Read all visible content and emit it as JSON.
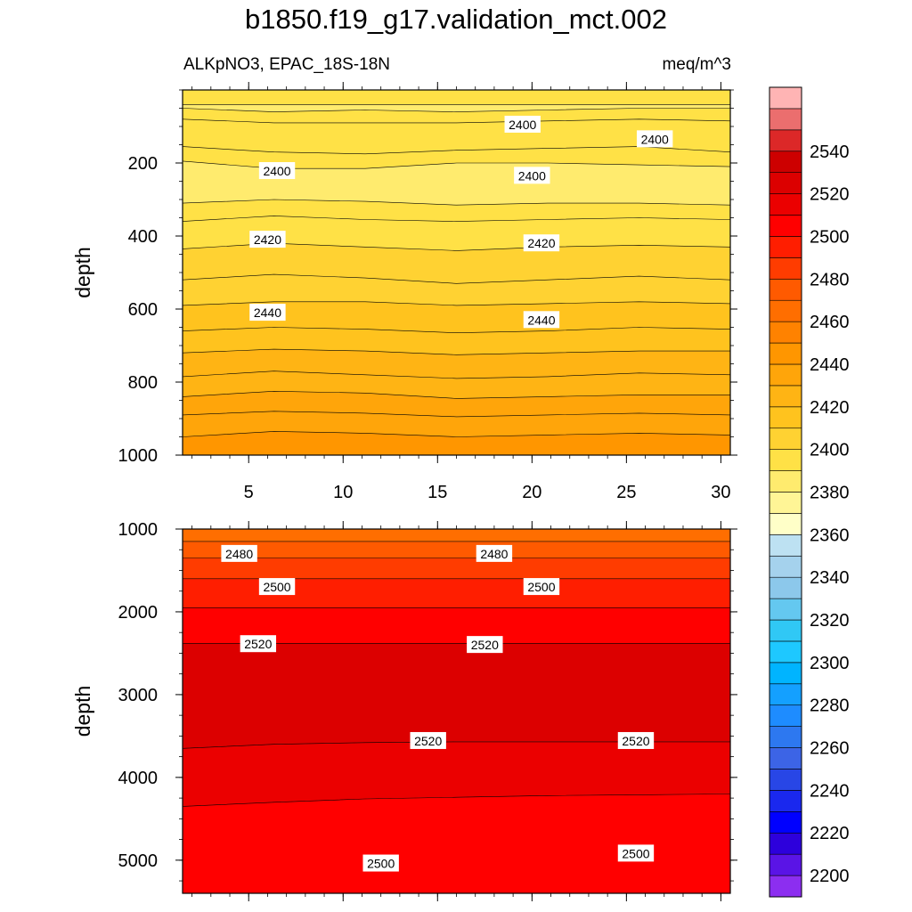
{
  "chart_data": {
    "type": "heatmap",
    "title": "b1850.f19_g17.validation_mct.002",
    "subtitle_left": "ALKpNO3, EPAC_18S-18N",
    "subtitle_right": "meq/m^3",
    "panels": [
      {
        "name": "upper",
        "ylabel": "depth",
        "xlim": [
          1.5,
          30.5
        ],
        "ylim": [
          1000,
          0
        ],
        "x_ticks": [
          "5",
          "10",
          "15",
          "20",
          "25",
          "30"
        ],
        "y_ticks": [
          "200",
          "400",
          "600",
          "800",
          "1000"
        ],
        "bands": [
          {
            "top": [
              0,
              0,
              0,
              0,
              0,
              0,
              0
            ],
            "bottom": [
              40,
              40,
              40,
              40,
              40,
              40,
              40
            ],
            "value": 2390
          },
          {
            "top": [
              40,
              40,
              40,
              40,
              40,
              40,
              40
            ],
            "bottom": [
              50,
              60,
              55,
              60,
              55,
              50,
              50
            ],
            "value": 2385
          },
          {
            "top": [
              50,
              60,
              55,
              60,
              55,
              50,
              50
            ],
            "bottom": [
              80,
              90,
              90,
              90,
              85,
              80,
              85
            ],
            "value": 2390
          },
          {
            "top": [
              80,
              90,
              90,
              90,
              85,
              80,
              85
            ],
            "bottom": [
              155,
              170,
              175,
              165,
              160,
              155,
              170
            ],
            "value": 2395
          },
          {
            "top": [
              155,
              170,
              175,
              165,
              160,
              155,
              170
            ],
            "bottom": [
              195,
              215,
              215,
              200,
              200,
              205,
              210
            ],
            "value": 2390
          },
          {
            "top": [
              195,
              215,
              215,
              200,
              200,
              205,
              210
            ],
            "bottom": [
              310,
              300,
              305,
              315,
              310,
              310,
              315
            ],
            "value": 2385
          },
          {
            "top": [
              310,
              300,
              305,
              315,
              310,
              310,
              315
            ],
            "bottom": [
              360,
              345,
              355,
              360,
              355,
              350,
              355
            ],
            "value": 2390
          },
          {
            "top": [
              360,
              345,
              355,
              360,
              355,
              350,
              355
            ],
            "bottom": [
              435,
              420,
              430,
              440,
              430,
              425,
              430
            ],
            "value": 2395
          },
          {
            "top": [
              435,
              420,
              430,
              440,
              430,
              425,
              430
            ],
            "bottom": [
              520,
              505,
              515,
              530,
              520,
              510,
              520
            ],
            "value": 2400
          },
          {
            "top": [
              520,
              505,
              515,
              530,
              520,
              510,
              520
            ],
            "bottom": [
              590,
              580,
              580,
              590,
              585,
              580,
              585
            ],
            "value": 2405
          },
          {
            "top": [
              590,
              580,
              580,
              590,
              585,
              580,
              585
            ],
            "bottom": [
              660,
              650,
              655,
              665,
              660,
              650,
              655
            ],
            "value": 2410
          },
          {
            "top": [
              660,
              650,
              655,
              665,
              660,
              650,
              655
            ],
            "bottom": [
              720,
              710,
              715,
              725,
              720,
              715,
              715
            ],
            "value": 2415
          },
          {
            "top": [
              720,
              710,
              715,
              725,
              720,
              715,
              715
            ],
            "bottom": [
              785,
              770,
              780,
              790,
              785,
              775,
              780
            ],
            "value": 2420
          },
          {
            "top": [
              785,
              770,
              780,
              790,
              785,
              775,
              780
            ],
            "bottom": [
              840,
              825,
              830,
              845,
              840,
              835,
              835
            ],
            "value": 2425
          },
          {
            "top": [
              840,
              825,
              830,
              845,
              840,
              835,
              835
            ],
            "bottom": [
              890,
              880,
              885,
              895,
              890,
              885,
              890
            ],
            "value": 2430
          },
          {
            "top": [
              890,
              880,
              885,
              895,
              890,
              885,
              890
            ],
            "bottom": [
              950,
              935,
              940,
              950,
              945,
              940,
              945
            ],
            "value": 2435
          },
          {
            "top": [
              950,
              935,
              940,
              950,
              945,
              940,
              945
            ],
            "bottom": [
              1000,
              1000,
              1000,
              1000,
              1000,
              1000,
              1000
            ],
            "value": 2445
          }
        ],
        "contour_labels": [
          {
            "x": 19.5,
            "y": 95,
            "text": "2400"
          },
          {
            "x": 26.5,
            "y": 135,
            "text": "2400"
          },
          {
            "x": 6.5,
            "y": 222,
            "text": "2400"
          },
          {
            "x": 20.0,
            "y": 235,
            "text": "2400"
          },
          {
            "x": 6.0,
            "y": 410,
            "text": "2420"
          },
          {
            "x": 20.5,
            "y": 420,
            "text": "2420"
          },
          {
            "x": 6.0,
            "y": 610,
            "text": "2440"
          },
          {
            "x": 20.5,
            "y": 630,
            "text": "2440"
          }
        ]
      },
      {
        "name": "lower",
        "ylabel": "depth",
        "xlim": [
          1.5,
          30.5
        ],
        "ylim": [
          1000,
          5400
        ],
        "x_ticks": [],
        "y_ticks": [
          "1000",
          "2000",
          "3000",
          "4000",
          "5000"
        ],
        "bands": [
          {
            "top": [
              1000,
              1000,
              1000,
              1000,
              1000,
              1000,
              1000
            ],
            "bottom": [
              1150,
              1150,
              1150,
              1150,
              1150,
              1150,
              1150
            ],
            "value": 2465
          },
          {
            "top": [
              1150,
              1150,
              1150,
              1150,
              1150,
              1150,
              1150
            ],
            "bottom": [
              1350,
              1350,
              1350,
              1350,
              1350,
              1350,
              1350
            ],
            "value": 2475
          },
          {
            "top": [
              1350,
              1350,
              1350,
              1350,
              1350,
              1350,
              1350
            ],
            "bottom": [
              1600,
              1600,
              1600,
              1600,
              1600,
              1600,
              1600
            ],
            "value": 2485
          },
          {
            "top": [
              1600,
              1600,
              1600,
              1600,
              1600,
              1600,
              1600
            ],
            "bottom": [
              1950,
              1950,
              1950,
              1950,
              1950,
              1950,
              1950
            ],
            "value": 2495
          },
          {
            "top": [
              1950,
              1950,
              1950,
              1950,
              1950,
              1950,
              1950
            ],
            "bottom": [
              2380,
              2380,
              2380,
              2380,
              2380,
              2380,
              2380
            ],
            "value": 2505
          },
          {
            "top": [
              2380,
              2380,
              2380,
              2380,
              2380,
              2380,
              2380
            ],
            "bottom": [
              3650,
              3600,
              3580,
              3570,
              3570,
              3570,
              3570
            ],
            "value": 2525
          },
          {
            "top": [
              3650,
              3600,
              3580,
              3570,
              3570,
              3570,
              3570
            ],
            "bottom": [
              4350,
              4300,
              4260,
              4240,
              4220,
              4210,
              4200
            ],
            "value": 2515
          },
          {
            "top": [
              4350,
              4300,
              4260,
              4240,
              4220,
              4210,
              4200
            ],
            "bottom": [
              5400,
              5400,
              5400,
              5400,
              5400,
              5400,
              5400
            ],
            "value": 2505
          }
        ],
        "contour_labels": [
          {
            "x": 4.5,
            "y": 1300,
            "text": "2480"
          },
          {
            "x": 18.0,
            "y": 1300,
            "text": "2480"
          },
          {
            "x": 6.5,
            "y": 1700,
            "text": "2500"
          },
          {
            "x": 20.5,
            "y": 1700,
            "text": "2500"
          },
          {
            "x": 5.5,
            "y": 2390,
            "text": "2520"
          },
          {
            "x": 17.5,
            "y": 2400,
            "text": "2520"
          },
          {
            "x": 14.5,
            "y": 3560,
            "text": "2520"
          },
          {
            "x": 25.5,
            "y": 3560,
            "text": "2520"
          },
          {
            "x": 12.0,
            "y": 5040,
            "text": "2500"
          },
          {
            "x": 25.5,
            "y": 4920,
            "text": "2500"
          }
        ]
      }
    ],
    "colorbar": {
      "min": 2190,
      "step": 10,
      "colors": [
        "#8c2ef0",
        "#5a14e6",
        "#2d00dc",
        "#0000ff",
        "#1a28ee",
        "#2846e6",
        "#3c64e6",
        "#2d78f0",
        "#1e8cff",
        "#14a0ff",
        "#00b4ff",
        "#1ec8ff",
        "#30c8f5",
        "#64c8f0",
        "#8cc8eb",
        "#a5d2ed",
        "#bde1f2",
        "#ffffc8",
        "#fff596",
        "#ffeb6e",
        "#ffe146",
        "#ffd232",
        "#ffc31e",
        "#ffb414",
        "#ffa50a",
        "#ff9600",
        "#ff8200",
        "#ff6e00",
        "#ff5a00",
        "#ff3c00",
        "#ff1e00",
        "#ff0000",
        "#eb0000",
        "#dc0000",
        "#cd0000",
        "#dc2828",
        "#eb6e6e",
        "#ffb4b4"
      ],
      "labels": [
        "2200",
        "2220",
        "2240",
        "2260",
        "2280",
        "2300",
        "2320",
        "2340",
        "2360",
        "2380",
        "2400",
        "2420",
        "2440",
        "2460",
        "2480",
        "2500",
        "2520",
        "2540"
      ]
    }
  }
}
